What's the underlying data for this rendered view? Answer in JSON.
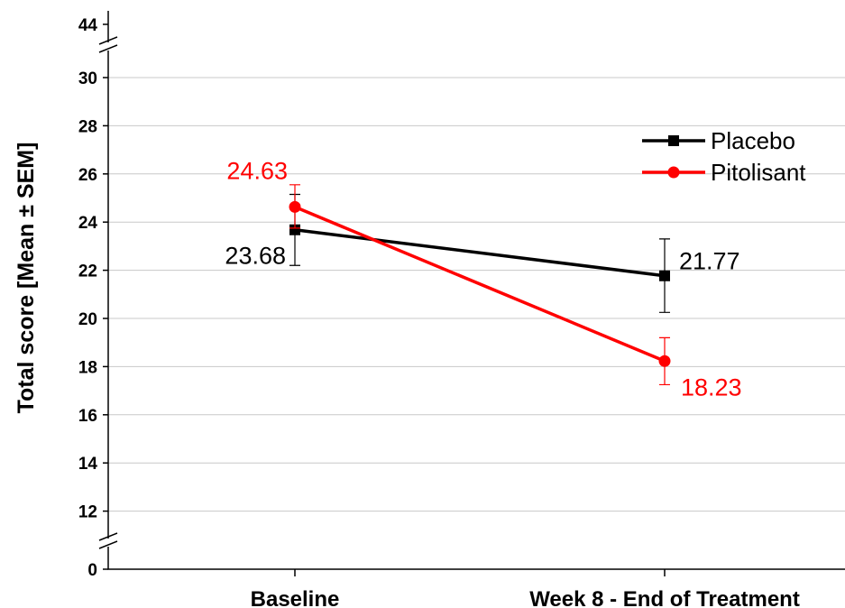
{
  "chart_data": {
    "type": "line",
    "categories": [
      "Baseline",
      "Week 8 - End of Treatment"
    ],
    "ylabel": "Total score [Mean ± SEM]",
    "xlabel": "",
    "ylim": [
      0,
      44
    ],
    "axis_break": "y-axis broken between 0 and 11 and between 31 and 44",
    "y_ticks": [
      "0",
      "12",
      "14",
      "16",
      "18",
      "20",
      "22",
      "24",
      "26",
      "28",
      "30",
      "44"
    ],
    "grid": "horizontal",
    "legend_position": "top-right",
    "series": [
      {
        "name": "Placebo",
        "color": "#000000",
        "marker": "square",
        "values": [
          23.68,
          21.77
        ],
        "labels": [
          "23.68",
          "21.77"
        ],
        "error_low": [
          22.2,
          20.25
        ],
        "error_high": [
          25.15,
          23.3
        ]
      },
      {
        "name": "Pitolisant",
        "color": "#ff0000",
        "marker": "circle",
        "values": [
          24.63,
          18.23
        ],
        "labels": [
          "24.63",
          "18.23"
        ],
        "error_low": [
          23.75,
          17.25
        ],
        "error_high": [
          25.55,
          19.2
        ]
      }
    ]
  }
}
